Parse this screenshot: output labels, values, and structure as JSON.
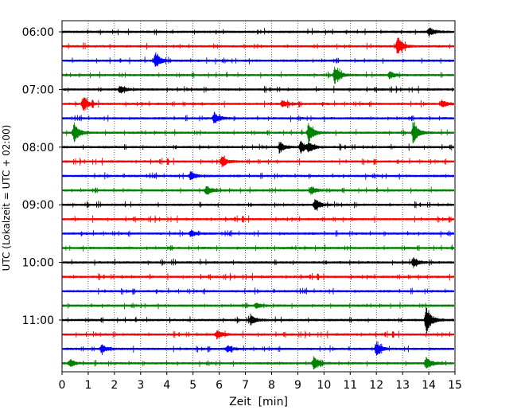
{
  "chart_data": {
    "type": "line",
    "title": "",
    "xlabel": "Zeit  [min]",
    "ylabel": "UTC (Lokalzeit = UTC + 02:00)",
    "xlim": [
      0,
      15
    ],
    "x_ticks": [
      "0",
      "1",
      "2",
      "3",
      "4",
      "5",
      "6",
      "7",
      "8",
      "9",
      "10",
      "11",
      "12",
      "13",
      "14",
      "15"
    ],
    "y_ticks": [
      "06:00",
      "07:00",
      "08:00",
      "09:00",
      "10:00",
      "11:00"
    ],
    "row_interval_minutes": 15,
    "grid": "vertical dotted at each minute",
    "colors": [
      "#000000",
      "#ff0000",
      "#0000ff",
      "#008000"
    ],
    "rows": [
      {
        "start": "06:00",
        "color": "#000000",
        "events": [
          {
            "t": 14.0,
            "a": 0.45
          }
        ]
      },
      {
        "start": "06:15",
        "color": "#ff0000",
        "events": [
          {
            "t": 12.8,
            "a": 1.0
          }
        ]
      },
      {
        "start": "06:30",
        "color": "#0000ff",
        "events": [
          {
            "t": 3.55,
            "a": 0.8
          }
        ]
      },
      {
        "start": "06:45",
        "color": "#008000",
        "events": [
          {
            "t": 10.4,
            "a": 0.9
          },
          {
            "t": 12.5,
            "a": 0.4
          }
        ]
      },
      {
        "start": "07:00",
        "color": "#000000",
        "events": [
          {
            "t": 2.2,
            "a": 0.4
          }
        ]
      },
      {
        "start": "07:15",
        "color": "#ff0000",
        "events": [
          {
            "t": 0.8,
            "a": 0.7
          },
          {
            "t": 8.4,
            "a": 0.35
          },
          {
            "t": 14.5,
            "a": 0.35
          }
        ]
      },
      {
        "start": "07:30",
        "color": "#0000ff",
        "events": [
          {
            "t": 5.8,
            "a": 0.6
          }
        ]
      },
      {
        "start": "07:45",
        "color": "#008000",
        "events": [
          {
            "t": 0.45,
            "a": 1.0
          },
          {
            "t": 9.4,
            "a": 1.0
          },
          {
            "t": 13.4,
            "a": 1.0
          }
        ]
      },
      {
        "start": "08:00",
        "color": "#000000",
        "events": [
          {
            "t": 8.3,
            "a": 0.5
          },
          {
            "t": 9.1,
            "a": 0.6
          },
          {
            "t": 9.4,
            "a": 0.5
          }
        ]
      },
      {
        "start": "08:15",
        "color": "#ff0000",
        "events": [
          {
            "t": 6.1,
            "a": 0.55
          }
        ]
      },
      {
        "start": "08:30",
        "color": "#0000ff",
        "events": [
          {
            "t": 4.9,
            "a": 0.45
          }
        ]
      },
      {
        "start": "08:45",
        "color": "#008000",
        "events": [
          {
            "t": 5.5,
            "a": 0.45
          },
          {
            "t": 9.5,
            "a": 0.4
          }
        ]
      },
      {
        "start": "09:00",
        "color": "#000000",
        "events": [
          {
            "t": 9.65,
            "a": 0.65
          }
        ]
      },
      {
        "start": "09:15",
        "color": "#ff0000",
        "events": []
      },
      {
        "start": "09:30",
        "color": "#0000ff",
        "events": [
          {
            "t": 4.9,
            "a": 0.35
          }
        ]
      },
      {
        "start": "09:45",
        "color": "#008000",
        "events": []
      },
      {
        "start": "10:00",
        "color": "#000000",
        "events": [
          {
            "t": 13.4,
            "a": 0.45
          }
        ]
      },
      {
        "start": "10:15",
        "color": "#ff0000",
        "events": []
      },
      {
        "start": "10:30",
        "color": "#0000ff",
        "events": []
      },
      {
        "start": "10:45",
        "color": "#008000",
        "events": [
          {
            "t": 7.4,
            "a": 0.3
          }
        ]
      },
      {
        "start": "11:00",
        "color": "#000000",
        "events": [
          {
            "t": 7.2,
            "a": 0.45
          },
          {
            "t": 13.9,
            "a": 1.4
          }
        ]
      },
      {
        "start": "11:15",
        "color": "#ff0000",
        "events": [
          {
            "t": 5.9,
            "a": 0.45
          }
        ]
      },
      {
        "start": "11:30",
        "color": "#0000ff",
        "events": [
          {
            "t": 1.5,
            "a": 0.4
          },
          {
            "t": 6.3,
            "a": 0.35
          },
          {
            "t": 12.0,
            "a": 0.6
          }
        ]
      },
      {
        "start": "11:45",
        "color": "#008000",
        "events": [
          {
            "t": 0.3,
            "a": 0.35
          },
          {
            "t": 9.6,
            "a": 0.65
          },
          {
            "t": 13.9,
            "a": 0.6
          }
        ]
      }
    ]
  }
}
